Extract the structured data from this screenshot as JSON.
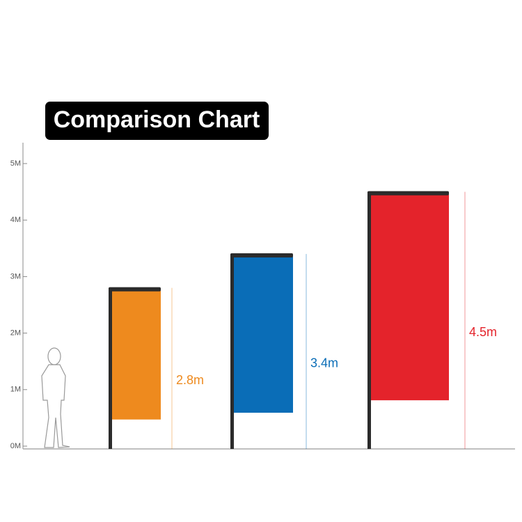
{
  "chart_data": {
    "type": "bar",
    "title": "Comparison Chart",
    "values": [
      2.8,
      3.4,
      4.5
    ],
    "value_labels": [
      "2.8m",
      "3.4m",
      "4.5m"
    ],
    "colors": [
      "#ee8a1e",
      "#0a6db7",
      "#e4232b"
    ],
    "ylim": [
      0,
      5
    ],
    "yticks": [
      {
        "value": 0,
        "label": "0M"
      },
      {
        "value": 1,
        "label": "1M"
      },
      {
        "value": 2,
        "label": "2M"
      },
      {
        "value": 3,
        "label": "3M"
      },
      {
        "value": 4,
        "label": "4M"
      },
      {
        "value": 5,
        "label": "5M"
      }
    ]
  }
}
